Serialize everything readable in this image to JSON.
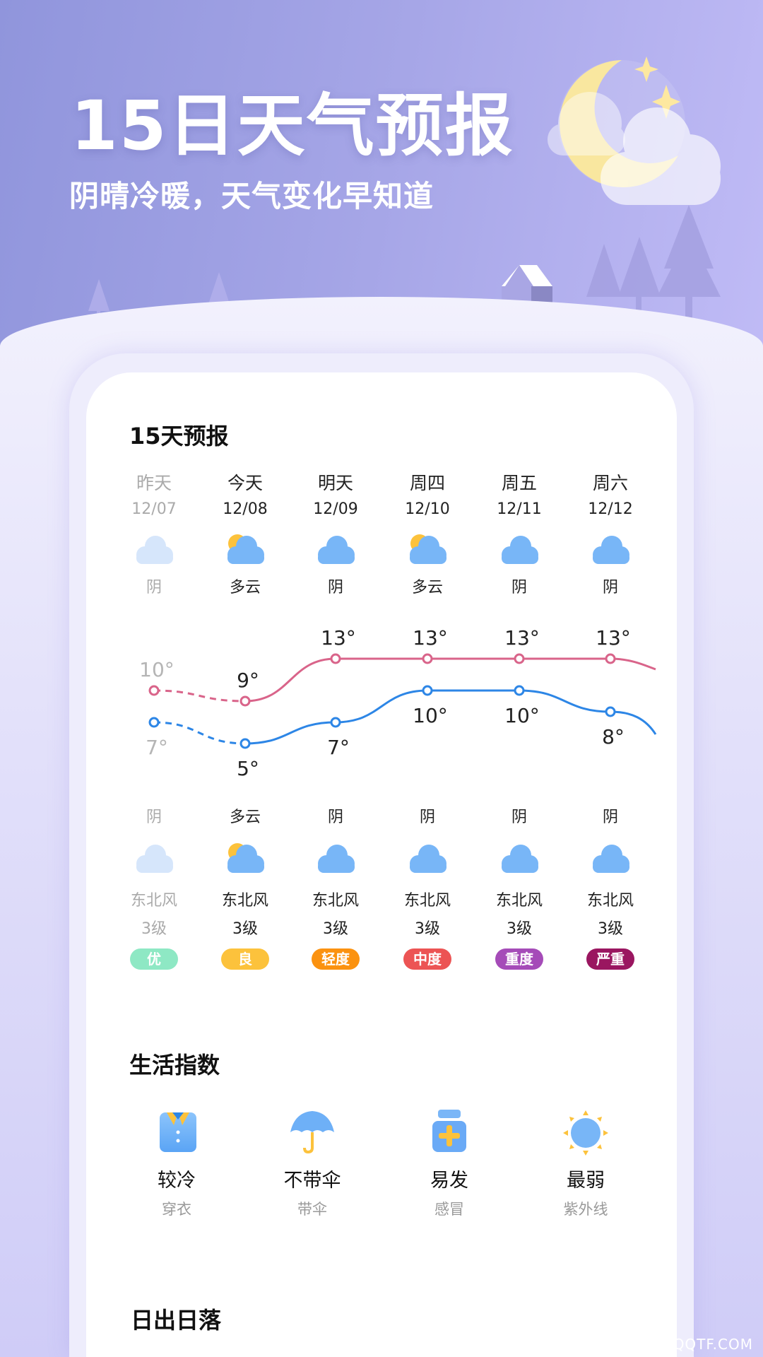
{
  "header": {
    "title": "15日天气预报",
    "subtitle": "阴晴冷暖，天气变化早知道"
  },
  "forecast": {
    "title": "15天预报",
    "days": [
      {
        "name": "昨天",
        "date": "12/07",
        "day_condition": "阴",
        "day_icon": "cloud-icon",
        "high": 10,
        "high_label": "10°",
        "low": 7,
        "low_label": "7°",
        "night_condition": "阴",
        "night_icon": "cloud-icon",
        "wind": "东北风",
        "wind_level": "3级",
        "aqi": "优",
        "aqi_color": "#8ee8c4",
        "past": true
      },
      {
        "name": "今天",
        "date": "12/08",
        "day_condition": "多云",
        "day_icon": "partly-cloudy-icon",
        "high": 9,
        "high_label": "9°",
        "low": 5,
        "low_label": "5°",
        "night_condition": "多云",
        "night_icon": "partly-cloudy-icon",
        "wind": "东北风",
        "wind_level": "3级",
        "aqi": "良",
        "aqi_color": "#fcc23c"
      },
      {
        "name": "明天",
        "date": "12/09",
        "day_condition": "阴",
        "day_icon": "cloud-icon",
        "high": 13,
        "high_label": "13°",
        "low": 7,
        "low_label": "7°",
        "night_condition": "阴",
        "night_icon": "cloud-icon",
        "wind": "东北风",
        "wind_level": "3级",
        "aqi": "轻度",
        "aqi_color": "#fb9210"
      },
      {
        "name": "周四",
        "date": "12/10",
        "day_condition": "多云",
        "day_icon": "partly-cloudy-icon",
        "high": 13,
        "high_label": "13°",
        "low": 10,
        "low_label": "10°",
        "night_condition": "阴",
        "night_icon": "cloud-icon",
        "wind": "东北风",
        "wind_level": "3级",
        "aqi": "中度",
        "aqi_color": "#ec5454"
      },
      {
        "name": "周五",
        "date": "12/11",
        "day_condition": "阴",
        "day_icon": "cloud-icon",
        "high": 13,
        "high_label": "13°",
        "low": 10,
        "low_label": "10°",
        "night_condition": "阴",
        "night_icon": "cloud-icon",
        "wind": "东北风",
        "wind_level": "3级",
        "aqi": "重度",
        "aqi_color": "#a54bb8"
      },
      {
        "name": "周六",
        "date": "12/12",
        "day_condition": "阴",
        "day_icon": "cloud-icon",
        "high": 13,
        "high_label": "13°",
        "low": 8,
        "low_label": "8°",
        "night_condition": "阴",
        "night_icon": "cloud-icon",
        "wind": "东北风",
        "wind_level": "3级",
        "aqi": "严重",
        "aqi_color": "#9a1660"
      }
    ],
    "high_color": "#d9648a",
    "low_color": "#2d86e6"
  },
  "life": {
    "title": "生活指数",
    "items": [
      {
        "value": "较冷",
        "label": "穿衣",
        "icon": "shirt-icon"
      },
      {
        "value": "不带伞",
        "label": "带伞",
        "icon": "umbrella-icon"
      },
      {
        "value": "易发",
        "label": "感冒",
        "icon": "medicine-icon"
      },
      {
        "value": "最弱",
        "label": "紫外线",
        "icon": "sun-icon"
      }
    ]
  },
  "sun": {
    "title": "日出日落"
  },
  "watermark": "QQTF.COM"
}
